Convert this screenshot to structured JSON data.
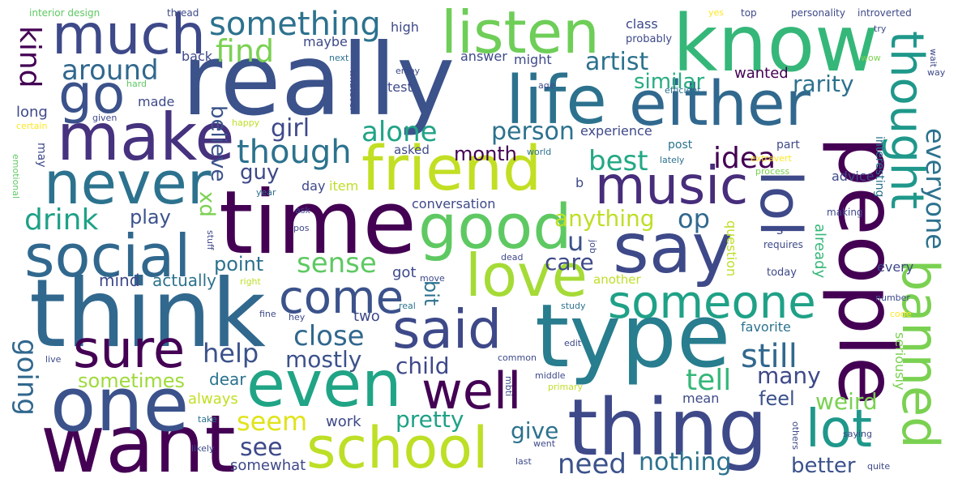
{
  "words": [
    {
      "text": "really",
      "color": "#3b528b"
    },
    {
      "text": "time",
      "color": "#440154"
    },
    {
      "text": "think",
      "color": "#31688e"
    },
    {
      "text": "type",
      "color": "#287d8e"
    },
    {
      "text": "people",
      "color": "#440154"
    },
    {
      "text": "know",
      "color": "#35b779"
    },
    {
      "text": "want",
      "color": "#440154"
    },
    {
      "text": "one",
      "color": "#3b528b"
    },
    {
      "text": "thing",
      "color": "#3e4989"
    },
    {
      "text": "life",
      "color": "#2c728e"
    },
    {
      "text": "friend",
      "color": "#c2df23"
    },
    {
      "text": "either",
      "color": "#31688e"
    },
    {
      "text": "say",
      "color": "#3e4989"
    },
    {
      "text": "make",
      "color": "#46327e"
    },
    {
      "text": "much",
      "color": "#3e4989"
    },
    {
      "text": "even",
      "color": "#20a486"
    },
    {
      "text": "said",
      "color": "#3e4989"
    },
    {
      "text": "school",
      "color": "#bddf26"
    },
    {
      "text": "good",
      "color": "#5ec962"
    },
    {
      "text": "love",
      "color": "#a5db36"
    },
    {
      "text": "music",
      "color": "#472d7b"
    },
    {
      "text": "never",
      "color": "#2c728e"
    },
    {
      "text": "go",
      "color": "#3b528b"
    },
    {
      "text": "social",
      "color": "#31688e"
    },
    {
      "text": "listen",
      "color": "#6ece58"
    },
    {
      "text": "lol",
      "color": "#3e4989"
    },
    {
      "text": "thought",
      "color": "#1f988b"
    },
    {
      "text": "banned",
      "color": "#7ad151"
    },
    {
      "text": "well",
      "color": "#440154"
    },
    {
      "text": "sure",
      "color": "#440154"
    },
    {
      "text": "lot",
      "color": "#1f988b"
    },
    {
      "text": "someone",
      "color": "#1fa187"
    },
    {
      "text": "come",
      "color": "#3b528b"
    },
    {
      "text": "something",
      "color": "#2c728e"
    },
    {
      "text": "kind",
      "color": "#440154"
    },
    {
      "text": "find",
      "color": "#7ad151"
    },
    {
      "text": "around",
      "color": "#31688e"
    },
    {
      "text": "artist",
      "color": "#2c728e"
    },
    {
      "text": "similar",
      "color": "#27ad81"
    },
    {
      "text": "rarity",
      "color": "#2c728e"
    },
    {
      "text": "wanted",
      "color": "#440154"
    },
    {
      "text": "everyone",
      "color": "#2c728e"
    },
    {
      "text": "alone",
      "color": "#20a486"
    },
    {
      "text": "person",
      "color": "#2c728e"
    },
    {
      "text": "month",
      "color": "#440154"
    },
    {
      "text": "best",
      "color": "#22a884"
    },
    {
      "text": "idea",
      "color": "#440154"
    },
    {
      "text": "girl",
      "color": "#3e4989"
    },
    {
      "text": "believe",
      "color": "#3b528b"
    },
    {
      "text": "though",
      "color": "#2c728e"
    },
    {
      "text": "guy",
      "color": "#3e4989"
    },
    {
      "text": "xd",
      "color": "#7ad151"
    },
    {
      "text": "drink",
      "color": "#1fa187"
    },
    {
      "text": "play",
      "color": "#3b528b"
    },
    {
      "text": "anything",
      "color": "#bddf26"
    },
    {
      "text": "op",
      "color": "#31688e"
    },
    {
      "text": "u",
      "color": "#3b528b"
    },
    {
      "text": "point",
      "color": "#2c728e"
    },
    {
      "text": "sense",
      "color": "#5ec962"
    },
    {
      "text": "care",
      "color": "#3e4989"
    },
    {
      "text": "bit",
      "color": "#2c728e"
    },
    {
      "text": "mind",
      "color": "#3e4989"
    },
    {
      "text": "actually",
      "color": "#2c728e"
    },
    {
      "text": "close",
      "color": "#31688e"
    },
    {
      "text": "help",
      "color": "#3b528b"
    },
    {
      "text": "mostly",
      "color": "#3b528b"
    },
    {
      "text": "child",
      "color": "#3e4989"
    },
    {
      "text": "still",
      "color": "#31688e"
    },
    {
      "text": "tell",
      "color": "#35b779"
    },
    {
      "text": "many",
      "color": "#3e4989"
    },
    {
      "text": "feel",
      "color": "#3b528b"
    },
    {
      "text": "weird",
      "color": "#7ad151"
    },
    {
      "text": "going",
      "color": "#31688e"
    },
    {
      "text": "sometimes",
      "color": "#9fda3a"
    },
    {
      "text": "always",
      "color": "#c2df23"
    },
    {
      "text": "seem",
      "color": "#e0e31a"
    },
    {
      "text": "see",
      "color": "#3e4989"
    },
    {
      "text": "somewhat",
      "color": "#3e4989"
    },
    {
      "text": "work",
      "color": "#3e4989"
    },
    {
      "text": "pretty",
      "color": "#1fa187"
    },
    {
      "text": "give",
      "color": "#2c728e"
    },
    {
      "text": "need",
      "color": "#3b528b"
    },
    {
      "text": "nothing",
      "color": "#2c728e"
    },
    {
      "text": "better",
      "color": "#3b528b"
    },
    {
      "text": "dear",
      "color": "#2c728e"
    },
    {
      "text": "two",
      "color": "#3e4989"
    },
    {
      "text": "got",
      "color": "#3e4989"
    },
    {
      "text": "class",
      "color": "#3e4989"
    },
    {
      "text": "probably",
      "color": "#3e4989"
    },
    {
      "text": "answer",
      "color": "#3e4989"
    },
    {
      "text": "might",
      "color": "#3e4989"
    },
    {
      "text": "high",
      "color": "#3e4989"
    },
    {
      "text": "maybe",
      "color": "#3e4989"
    },
    {
      "text": "back",
      "color": "#3e4989"
    },
    {
      "text": "made",
      "color": "#3e4989"
    },
    {
      "text": "long",
      "color": "#3e4989"
    },
    {
      "text": "test",
      "color": "#3e4989"
    },
    {
      "text": "experience",
      "color": "#3e4989"
    },
    {
      "text": "asked",
      "color": "#3e4989"
    },
    {
      "text": "post",
      "color": "#2c728e"
    },
    {
      "text": "part",
      "color": "#3e4989"
    },
    {
      "text": "advice",
      "color": "#3e4989"
    },
    {
      "text": "day",
      "color": "#3e4989"
    },
    {
      "text": "item",
      "color": "#bddf26"
    },
    {
      "text": "conversation",
      "color": "#3e4989"
    },
    {
      "text": "may",
      "color": "#3e4989"
    },
    {
      "text": "another",
      "color": "#bddf26"
    },
    {
      "text": "every",
      "color": "#3e4989"
    },
    {
      "text": "today",
      "color": "#3e4989"
    },
    {
      "text": "favorite",
      "color": "#2c728e"
    },
    {
      "text": "question",
      "color": "#bddf26"
    },
    {
      "text": "already",
      "color": "#35b779"
    },
    {
      "text": "mean",
      "color": "#3e4989"
    },
    {
      "text": "seriously",
      "color": "#7ad151"
    },
    {
      "text": "interesting",
      "color": "#2c728e"
    },
    {
      "text": "requires",
      "color": "#3e4989"
    },
    {
      "text": "making",
      "color": "#3e4989"
    },
    {
      "text": "s",
      "color": "#3e4989"
    },
    {
      "text": "b",
      "color": "#3e4989"
    },
    {
      "text": "interior design",
      "color": "#5ec962"
    },
    {
      "text": "thread",
      "color": "#3e4989"
    },
    {
      "text": "yes",
      "color": "#fde725"
    },
    {
      "text": "top",
      "color": "#3e4989"
    },
    {
      "text": "personality",
      "color": "#3e4989"
    },
    {
      "text": "introverted",
      "color": "#3e4989"
    },
    {
      "text": "try",
      "color": "#3e4989"
    },
    {
      "text": "wait",
      "color": "#3e4989"
    },
    {
      "text": "next",
      "color": "#2c728e"
    },
    {
      "text": "enjoy",
      "color": "#3e4989"
    },
    {
      "text": "wow",
      "color": "#7ad151"
    },
    {
      "text": "way",
      "color": "#3e4989"
    },
    {
      "text": "hard",
      "color": "#5ec962"
    },
    {
      "text": "whatever",
      "color": "#3e4989"
    },
    {
      "text": "age",
      "color": "#3e4989"
    },
    {
      "text": "efficient",
      "color": "#2c728e"
    },
    {
      "text": "certain",
      "color": "#fde725"
    },
    {
      "text": "given",
      "color": "#3e4989"
    },
    {
      "text": "happy",
      "color": "#bddf26"
    },
    {
      "text": "lately",
      "color": "#2c728e"
    },
    {
      "text": "world",
      "color": "#2c728e"
    },
    {
      "text": "extravert",
      "color": "#fde725"
    },
    {
      "text": "process",
      "color": "#7ad151"
    },
    {
      "text": "emotional",
      "color": "#5ec962"
    },
    {
      "text": "year",
      "color": "#2c728e"
    },
    {
      "text": "ask",
      "color": "#3e4989"
    },
    {
      "text": "pos",
      "color": "#3e4989"
    },
    {
      "text": "stuff",
      "color": "#3e4989"
    },
    {
      "text": "job",
      "color": "#3e4989"
    },
    {
      "text": "dead",
      "color": "#3e4989"
    },
    {
      "text": "move",
      "color": "#3e4989"
    },
    {
      "text": "right",
      "color": "#bddf26"
    },
    {
      "text": "hey",
      "color": "#3e4989"
    },
    {
      "text": "fine",
      "color": "#3e4989"
    },
    {
      "text": "real",
      "color": "#2c728e"
    },
    {
      "text": "study",
      "color": "#2c728e"
    },
    {
      "text": "number",
      "color": "#3e4989"
    },
    {
      "text": "code",
      "color": "#fde725"
    },
    {
      "text": "live",
      "color": "#3e4989"
    },
    {
      "text": "common",
      "color": "#3e4989"
    },
    {
      "text": "edit",
      "color": "#3e4989"
    },
    {
      "text": "middle",
      "color": "#3e4989"
    },
    {
      "text": "mbti",
      "color": "#3e4989"
    },
    {
      "text": "primary",
      "color": "#bddf26"
    },
    {
      "text": "take",
      "color": "#2c728e"
    },
    {
      "text": "likely",
      "color": "#3e4989"
    },
    {
      "text": "saying",
      "color": "#3e4989"
    },
    {
      "text": "others",
      "color": "#3e4989"
    },
    {
      "text": "went",
      "color": "#3e4989"
    },
    {
      "text": "last",
      "color": "#3e4989"
    },
    {
      "text": "quite",
      "color": "#3e4989"
    }
  ]
}
